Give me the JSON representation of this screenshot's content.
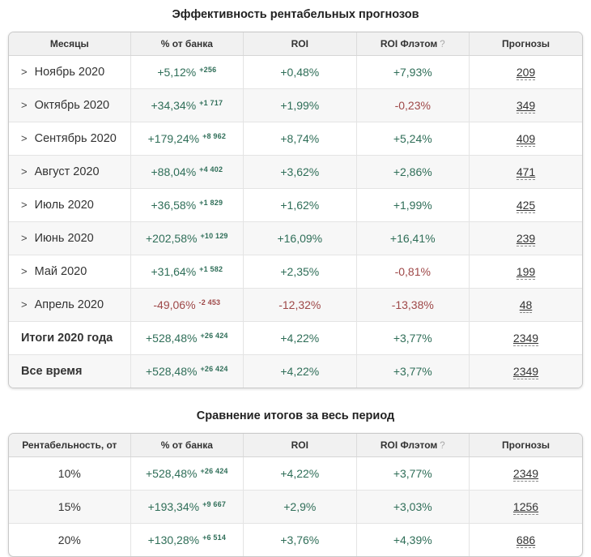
{
  "colors": {
    "green": "#2f6e58",
    "red": "#9e4848",
    "header_bg": "#f1f1f1",
    "stripe_bg": "#f7f7f7"
  },
  "table1": {
    "title": "Эффективность рентабельных прогнозов",
    "chevron": ">",
    "help_mark": "?",
    "columns": {
      "months": "Месяцы",
      "bank": "% от банка",
      "roi": "ROI",
      "roi_flat": "ROI Флэтом",
      "forecasts": "Прогнозы"
    },
    "rows": [
      {
        "label": "Ноябрь 2020",
        "bank": "+5,12%",
        "bank_sup": "+256",
        "cls": "green",
        "roi": "+0,48%",
        "roi_cls": "green",
        "flat": "+7,93%",
        "flat_cls": "green",
        "count": "209"
      },
      {
        "label": "Октябрь 2020",
        "bank": "+34,34%",
        "bank_sup": "+1 717",
        "cls": "green",
        "roi": "+1,99%",
        "roi_cls": "green",
        "flat": "-0,23%",
        "flat_cls": "red",
        "count": "349"
      },
      {
        "label": "Сентябрь 2020",
        "bank": "+179,24%",
        "bank_sup": "+8 962",
        "cls": "green",
        "roi": "+8,74%",
        "roi_cls": "green",
        "flat": "+5,24%",
        "flat_cls": "green",
        "count": "409"
      },
      {
        "label": "Август 2020",
        "bank": "+88,04%",
        "bank_sup": "+4 402",
        "cls": "green",
        "roi": "+3,62%",
        "roi_cls": "green",
        "flat": "+2,86%",
        "flat_cls": "green",
        "count": "471"
      },
      {
        "label": "Июль 2020",
        "bank": "+36,58%",
        "bank_sup": "+1 829",
        "cls": "green",
        "roi": "+1,62%",
        "roi_cls": "green",
        "flat": "+1,99%",
        "flat_cls": "green",
        "count": "425"
      },
      {
        "label": "Июнь 2020",
        "bank": "+202,58%",
        "bank_sup": "+10 129",
        "cls": "green",
        "roi": "+16,09%",
        "roi_cls": "green",
        "flat": "+16,41%",
        "flat_cls": "green",
        "count": "239"
      },
      {
        "label": "Май 2020",
        "bank": "+31,64%",
        "bank_sup": "+1 582",
        "cls": "green",
        "roi": "+2,35%",
        "roi_cls": "green",
        "flat": "-0,81%",
        "flat_cls": "red",
        "count": "199"
      },
      {
        "label": "Апрель 2020",
        "bank": "-49,06%",
        "bank_sup": "-2 453",
        "cls": "red",
        "roi": "-12,32%",
        "roi_cls": "red",
        "flat": "-13,38%",
        "flat_cls": "red",
        "count": "48"
      },
      {
        "label": "Итоги 2020 года",
        "bank": "+528,48%",
        "bank_sup": "+26 424",
        "cls": "green",
        "roi": "+4,22%",
        "roi_cls": "green",
        "flat": "+3,77%",
        "flat_cls": "green",
        "count": "2349"
      },
      {
        "label": "Все время",
        "bank": "+528,48%",
        "bank_sup": "+26 424",
        "cls": "green",
        "roi": "+4,22%",
        "roi_cls": "green",
        "flat": "+3,77%",
        "flat_cls": "green",
        "count": "2349"
      }
    ]
  },
  "table2": {
    "title": "Сравнение итогов за весь период",
    "help_mark": "?",
    "columns": {
      "profitability": "Рентабельность, от",
      "bank": "% от банка",
      "roi": "ROI",
      "roi_flat": "ROI Флэтом",
      "forecasts": "Прогнозы"
    },
    "rows": [
      {
        "label": "10%",
        "bank": "+528,48%",
        "bank_sup": "+26 424",
        "cls": "green",
        "roi": "+4,22%",
        "roi_cls": "green",
        "flat": "+3,77%",
        "flat_cls": "green",
        "count": "2349"
      },
      {
        "label": "15%",
        "bank": "+193,34%",
        "bank_sup": "+9 667",
        "cls": "green",
        "roi": "+2,9%",
        "roi_cls": "green",
        "flat": "+3,03%",
        "flat_cls": "green",
        "count": "1256"
      },
      {
        "label": "20%",
        "bank": "+130,28%",
        "bank_sup": "+6 514",
        "cls": "green",
        "roi": "+3,76%",
        "roi_cls": "green",
        "flat": "+4,39%",
        "flat_cls": "green",
        "count": "686"
      }
    ]
  }
}
